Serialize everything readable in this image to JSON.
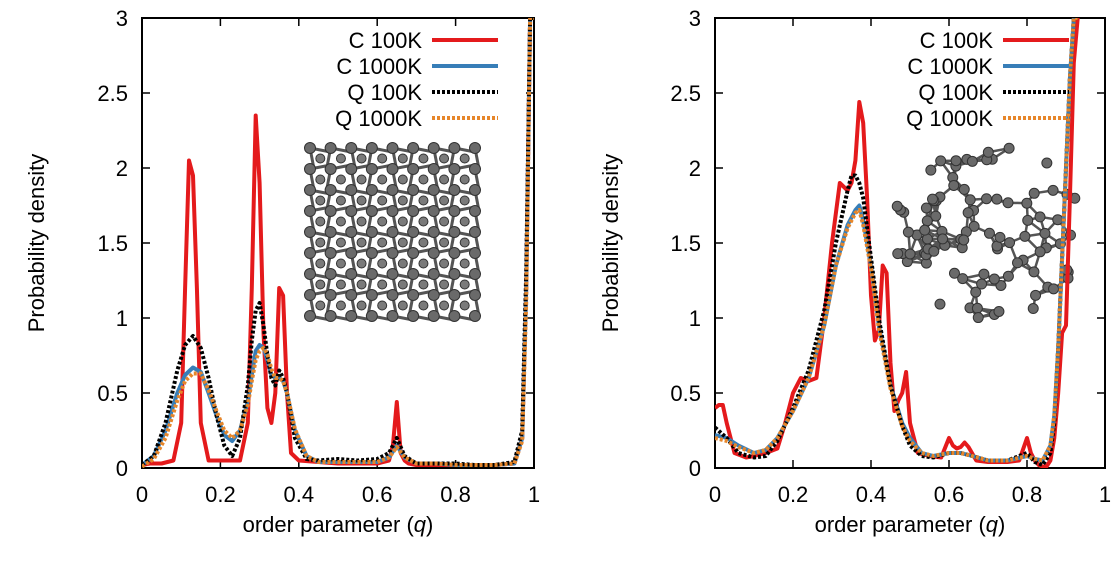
{
  "chart_data": [
    {
      "type": "line",
      "title": "",
      "xlabel": "order parameter (",
      "xlabel_var": "q",
      "xlabel_close": ")",
      "ylabel": "Probability density",
      "xlim": [
        0,
        1
      ],
      "ylim": [
        0,
        3
      ],
      "xticks": [
        "0",
        "0.2",
        "0.4",
        "0.6",
        "0.8",
        "1"
      ],
      "yticks": [
        "0",
        "0.5",
        "1",
        "1.5",
        "2",
        "2.5",
        "3"
      ],
      "legend_position": "top-right",
      "inset": "crystalline-structure",
      "series": [
        {
          "name": "C 100K",
          "color": "#e41a1c",
          "style": "solid",
          "x": [
            0,
            0.02,
            0.05,
            0.08,
            0.1,
            0.11,
            0.12,
            0.13,
            0.14,
            0.15,
            0.17,
            0.2,
            0.22,
            0.25,
            0.27,
            0.28,
            0.29,
            0.3,
            0.31,
            0.32,
            0.33,
            0.34,
            0.35,
            0.36,
            0.37,
            0.38,
            0.4,
            0.45,
            0.5,
            0.55,
            0.6,
            0.63,
            0.64,
            0.65,
            0.66,
            0.67,
            0.68,
            0.7,
            0.75,
            0.8,
            0.85,
            0.9,
            0.95,
            0.97,
            0.98,
            0.99,
            1.0
          ],
          "y": [
            0.02,
            0.03,
            0.03,
            0.05,
            0.3,
            1.2,
            2.05,
            1.95,
            1.2,
            0.3,
            0.05,
            0.05,
            0.05,
            0.05,
            0.3,
            1.2,
            2.35,
            1.9,
            0.9,
            0.4,
            0.3,
            0.5,
            1.2,
            1.15,
            0.5,
            0.1,
            0.05,
            0.04,
            0.03,
            0.03,
            0.03,
            0.05,
            0.15,
            0.44,
            0.1,
            0.05,
            0.03,
            0.02,
            0.02,
            0.02,
            0.02,
            0.02,
            0.03,
            0.2,
            1.2,
            3.0,
            3.0
          ]
        },
        {
          "name": "C 1000K",
          "color": "#377eb8",
          "style": "solid",
          "x": [
            0,
            0.03,
            0.06,
            0.09,
            0.11,
            0.13,
            0.15,
            0.17,
            0.19,
            0.21,
            0.23,
            0.25,
            0.27,
            0.28,
            0.29,
            0.3,
            0.31,
            0.32,
            0.33,
            0.34,
            0.35,
            0.36,
            0.37,
            0.39,
            0.42,
            0.45,
            0.5,
            0.55,
            0.6,
            0.63,
            0.65,
            0.67,
            0.7,
            0.75,
            0.8,
            0.85,
            0.9,
            0.95,
            0.97,
            0.98,
            0.99,
            1.0
          ],
          "y": [
            0.02,
            0.08,
            0.25,
            0.5,
            0.62,
            0.67,
            0.64,
            0.5,
            0.35,
            0.22,
            0.18,
            0.25,
            0.45,
            0.62,
            0.78,
            0.82,
            0.8,
            0.72,
            0.62,
            0.6,
            0.6,
            0.58,
            0.5,
            0.25,
            0.08,
            0.04,
            0.04,
            0.04,
            0.04,
            0.07,
            0.15,
            0.07,
            0.03,
            0.03,
            0.02,
            0.02,
            0.02,
            0.03,
            0.2,
            1.2,
            3.0,
            3.0
          ]
        },
        {
          "name": "Q 100K",
          "color": "#000000",
          "style": "dotted",
          "x": [
            0,
            0.03,
            0.06,
            0.09,
            0.11,
            0.13,
            0.15,
            0.17,
            0.19,
            0.21,
            0.23,
            0.25,
            0.27,
            0.28,
            0.29,
            0.3,
            0.31,
            0.32,
            0.33,
            0.34,
            0.35,
            0.36,
            0.37,
            0.39,
            0.42,
            0.45,
            0.5,
            0.55,
            0.6,
            0.63,
            0.65,
            0.67,
            0.7,
            0.75,
            0.8,
            0.85,
            0.9,
            0.95,
            0.97,
            0.98,
            0.99,
            1.0
          ],
          "y": [
            0.02,
            0.08,
            0.3,
            0.65,
            0.82,
            0.88,
            0.8,
            0.6,
            0.35,
            0.15,
            0.08,
            0.2,
            0.55,
            0.85,
            1.05,
            1.1,
            0.95,
            0.75,
            0.6,
            0.55,
            0.65,
            0.6,
            0.5,
            0.2,
            0.06,
            0.05,
            0.06,
            0.05,
            0.06,
            0.1,
            0.2,
            0.08,
            0.03,
            0.03,
            0.03,
            0.02,
            0.02,
            0.04,
            0.25,
            1.3,
            3.0,
            3.0
          ]
        },
        {
          "name": "Q 1000K",
          "color": "#e6862a",
          "style": "dotted",
          "x": [
            0,
            0.03,
            0.06,
            0.09,
            0.11,
            0.13,
            0.15,
            0.17,
            0.19,
            0.21,
            0.23,
            0.25,
            0.27,
            0.28,
            0.29,
            0.3,
            0.31,
            0.32,
            0.33,
            0.34,
            0.35,
            0.36,
            0.37,
            0.39,
            0.42,
            0.45,
            0.5,
            0.55,
            0.6,
            0.63,
            0.65,
            0.67,
            0.7,
            0.75,
            0.8,
            0.85,
            0.9,
            0.95,
            0.97,
            0.98,
            0.99,
            1.0
          ],
          "y": [
            0.01,
            0.06,
            0.2,
            0.45,
            0.58,
            0.63,
            0.63,
            0.52,
            0.38,
            0.25,
            0.2,
            0.25,
            0.42,
            0.58,
            0.72,
            0.78,
            0.8,
            0.76,
            0.66,
            0.6,
            0.6,
            0.58,
            0.5,
            0.26,
            0.08,
            0.04,
            0.04,
            0.04,
            0.04,
            0.07,
            0.14,
            0.07,
            0.03,
            0.03,
            0.02,
            0.02,
            0.02,
            0.03,
            0.18,
            1.1,
            3.0,
            3.0
          ]
        }
      ]
    },
    {
      "type": "line",
      "title": "",
      "xlabel": "order parameter (",
      "xlabel_var": "q",
      "xlabel_close": ")",
      "ylabel": "Probability density",
      "xlim": [
        0,
        1
      ],
      "ylim": [
        0,
        3
      ],
      "xticks": [
        "0",
        "0.2",
        "0.4",
        "0.6",
        "0.8",
        "1"
      ],
      "yticks": [
        "0",
        "0.5",
        "1",
        "1.5",
        "2",
        "2.5",
        "3"
      ],
      "legend_position": "top-right",
      "inset": "amorphous-structure",
      "series": [
        {
          "name": "C 100K",
          "color": "#e41a1c",
          "style": "solid",
          "x": [
            0,
            0.01,
            0.02,
            0.03,
            0.05,
            0.08,
            0.1,
            0.13,
            0.16,
            0.18,
            0.2,
            0.22,
            0.24,
            0.26,
            0.28,
            0.3,
            0.32,
            0.34,
            0.35,
            0.36,
            0.37,
            0.38,
            0.39,
            0.4,
            0.41,
            0.42,
            0.43,
            0.44,
            0.45,
            0.46,
            0.47,
            0.48,
            0.49,
            0.5,
            0.52,
            0.55,
            0.58,
            0.6,
            0.61,
            0.62,
            0.63,
            0.64,
            0.65,
            0.67,
            0.7,
            0.75,
            0.78,
            0.8,
            0.81,
            0.82,
            0.83,
            0.84,
            0.85,
            0.86,
            0.87,
            0.88,
            0.89,
            0.9,
            0.91,
            0.92,
            0.93
          ],
          "y": [
            0.4,
            0.42,
            0.42,
            0.3,
            0.1,
            0.07,
            0.08,
            0.1,
            0.13,
            0.3,
            0.5,
            0.6,
            0.58,
            0.6,
            1.0,
            1.5,
            1.9,
            1.85,
            1.9,
            2.05,
            2.44,
            2.3,
            1.8,
            1.15,
            0.85,
            0.92,
            1.35,
            1.3,
            0.7,
            0.38,
            0.45,
            0.5,
            0.64,
            0.3,
            0.1,
            0.08,
            0.07,
            0.2,
            0.15,
            0.13,
            0.14,
            0.17,
            0.14,
            0.05,
            0.04,
            0.04,
            0.05,
            0.2,
            0.1,
            0.05,
            0.02,
            0.01,
            0.01,
            0.05,
            0.2,
            0.5,
            0.9,
            0.95,
            1.8,
            2.7,
            3.0
          ]
        },
        {
          "name": "C 1000K",
          "color": "#377eb8",
          "style": "solid",
          "x": [
            0,
            0.03,
            0.06,
            0.1,
            0.13,
            0.16,
            0.2,
            0.24,
            0.28,
            0.31,
            0.34,
            0.36,
            0.37,
            0.38,
            0.4,
            0.42,
            0.45,
            0.48,
            0.5,
            0.53,
            0.56,
            0.6,
            0.63,
            0.66,
            0.7,
            0.75,
            0.8,
            0.82,
            0.84,
            0.86,
            0.87,
            0.88,
            0.89,
            0.9,
            0.91,
            0.92,
            0.93
          ],
          "y": [
            0.22,
            0.2,
            0.15,
            0.1,
            0.12,
            0.2,
            0.38,
            0.6,
            0.95,
            1.35,
            1.62,
            1.72,
            1.75,
            1.65,
            1.35,
            0.95,
            0.55,
            0.3,
            0.2,
            0.1,
            0.08,
            0.1,
            0.1,
            0.08,
            0.05,
            0.05,
            0.08,
            0.06,
            0.05,
            0.15,
            0.35,
            0.8,
            1.4,
            2.0,
            2.6,
            3.0,
            3.0
          ]
        },
        {
          "name": "Q 100K",
          "color": "#000000",
          "style": "dotted",
          "x": [
            0,
            0.03,
            0.06,
            0.1,
            0.13,
            0.16,
            0.2,
            0.24,
            0.28,
            0.31,
            0.34,
            0.35,
            0.36,
            0.37,
            0.38,
            0.4,
            0.42,
            0.45,
            0.48,
            0.5,
            0.53,
            0.56,
            0.6,
            0.63,
            0.66,
            0.7,
            0.75,
            0.8,
            0.82,
            0.84,
            0.86,
            0.87,
            0.88,
            0.89,
            0.9,
            0.91,
            0.92,
            0.93
          ],
          "y": [
            0.27,
            0.2,
            0.1,
            0.07,
            0.08,
            0.18,
            0.4,
            0.65,
            1.05,
            1.5,
            1.85,
            1.95,
            1.95,
            1.9,
            1.8,
            1.4,
            1.0,
            0.55,
            0.28,
            0.15,
            0.08,
            0.07,
            0.1,
            0.1,
            0.08,
            0.05,
            0.05,
            0.1,
            0.04,
            0.02,
            0.1,
            0.3,
            0.8,
            1.4,
            2.0,
            2.6,
            3.0,
            3.0
          ]
        },
        {
          "name": "Q 1000K",
          "color": "#e6862a",
          "style": "dotted",
          "x": [
            0,
            0.03,
            0.06,
            0.1,
            0.13,
            0.16,
            0.2,
            0.24,
            0.28,
            0.31,
            0.34,
            0.36,
            0.37,
            0.38,
            0.4,
            0.42,
            0.45,
            0.48,
            0.5,
            0.53,
            0.56,
            0.6,
            0.63,
            0.66,
            0.7,
            0.75,
            0.8,
            0.82,
            0.84,
            0.86,
            0.87,
            0.88,
            0.89,
            0.9,
            0.91,
            0.92,
            0.93
          ],
          "y": [
            0.2,
            0.18,
            0.14,
            0.1,
            0.12,
            0.2,
            0.38,
            0.6,
            0.95,
            1.35,
            1.6,
            1.7,
            1.72,
            1.62,
            1.33,
            0.93,
            0.53,
            0.28,
            0.18,
            0.1,
            0.08,
            0.1,
            0.1,
            0.08,
            0.05,
            0.05,
            0.08,
            0.06,
            0.05,
            0.15,
            0.35,
            0.8,
            1.4,
            2.0,
            2.6,
            3.0,
            3.0
          ]
        }
      ]
    }
  ]
}
